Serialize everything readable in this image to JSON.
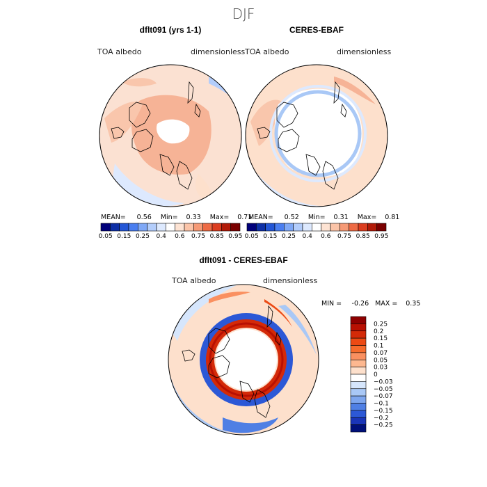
{
  "figure_title": "DJF",
  "chart_data": [
    {
      "type": "heatmap",
      "title": "dflt091 (yrs 1-1)",
      "variable_label": "TOA albedo",
      "units_label": "dimensionless",
      "stats": {
        "mean_label": "MEAN=",
        "mean": "0.56",
        "min_label": "Min=",
        "min": "0.33",
        "max_label": "Max=",
        "max": "0.71"
      },
      "colorbar": {
        "tick_labels": [
          "0.05",
          "0.15",
          "0.25",
          "0.4",
          "0.6",
          "0.75",
          "0.85",
          "0.95"
        ],
        "colors": [
          "#00007a",
          "#0d2fa6",
          "#2356d6",
          "#4a7ef0",
          "#7fa8f6",
          "#b3cdfb",
          "#dde9fe",
          "#ffffff",
          "#fde3d3",
          "#fbc4a8",
          "#f69a76",
          "#ee6b45",
          "#dc3d1f",
          "#b21a08",
          "#7a0000"
        ]
      },
      "description_regions": "north-polar stereographic; high-latitude interior unshaded; values near 0.6 shown light orange over continents"
    },
    {
      "type": "heatmap",
      "title": "CERES-EBAF",
      "variable_label": "TOA albedo",
      "units_label": "dimensionless",
      "stats": {
        "mean_label": "MEAN=",
        "mean": "0.52",
        "min_label": "Min=",
        "min": "0.31",
        "max_label": "Max=",
        "max": "0.81"
      },
      "colorbar": {
        "tick_labels": [
          "0.05",
          "0.15",
          "0.25",
          "0.4",
          "0.6",
          "0.75",
          "0.85",
          "0.95"
        ],
        "colors": [
          "#00007a",
          "#0d2fa6",
          "#2356d6",
          "#4a7ef0",
          "#7fa8f6",
          "#b3cdfb",
          "#dde9fe",
          "#ffffff",
          "#fde3d3",
          "#fbc4a8",
          "#f69a76",
          "#ee6b45",
          "#dc3d1f",
          "#b21a08",
          "#7a0000"
        ]
      }
    },
    {
      "type": "heatmap",
      "title": "dflt091 - CERES-EBAF",
      "variable_label": "TOA albedo",
      "units_label": "dimensionless",
      "stats": {
        "min_label": "MIN =",
        "min": "-0.26",
        "max_label": "MAX =",
        "max": "0.35"
      },
      "colorbar": {
        "tick_labels": [
          "0.25",
          "0.2",
          "0.15",
          "0.1",
          "0.07",
          "0.05",
          "0.03",
          "0",
          "−0.03",
          "−0.05",
          "−0.07",
          "−0.1",
          "−0.15",
          "−0.2",
          "−0.25"
        ],
        "colors": [
          "#8e0000",
          "#b81002",
          "#d42a08",
          "#ec4a14",
          "#f66b2c",
          "#fa9060",
          "#fdb890",
          "#fde0cc",
          "#ffffff",
          "#d6e6fc",
          "#a9c8f6",
          "#7ea6ee",
          "#4f7fe4",
          "#2c58d6",
          "#1a35b8",
          "#00107a"
        ]
      }
    }
  ]
}
